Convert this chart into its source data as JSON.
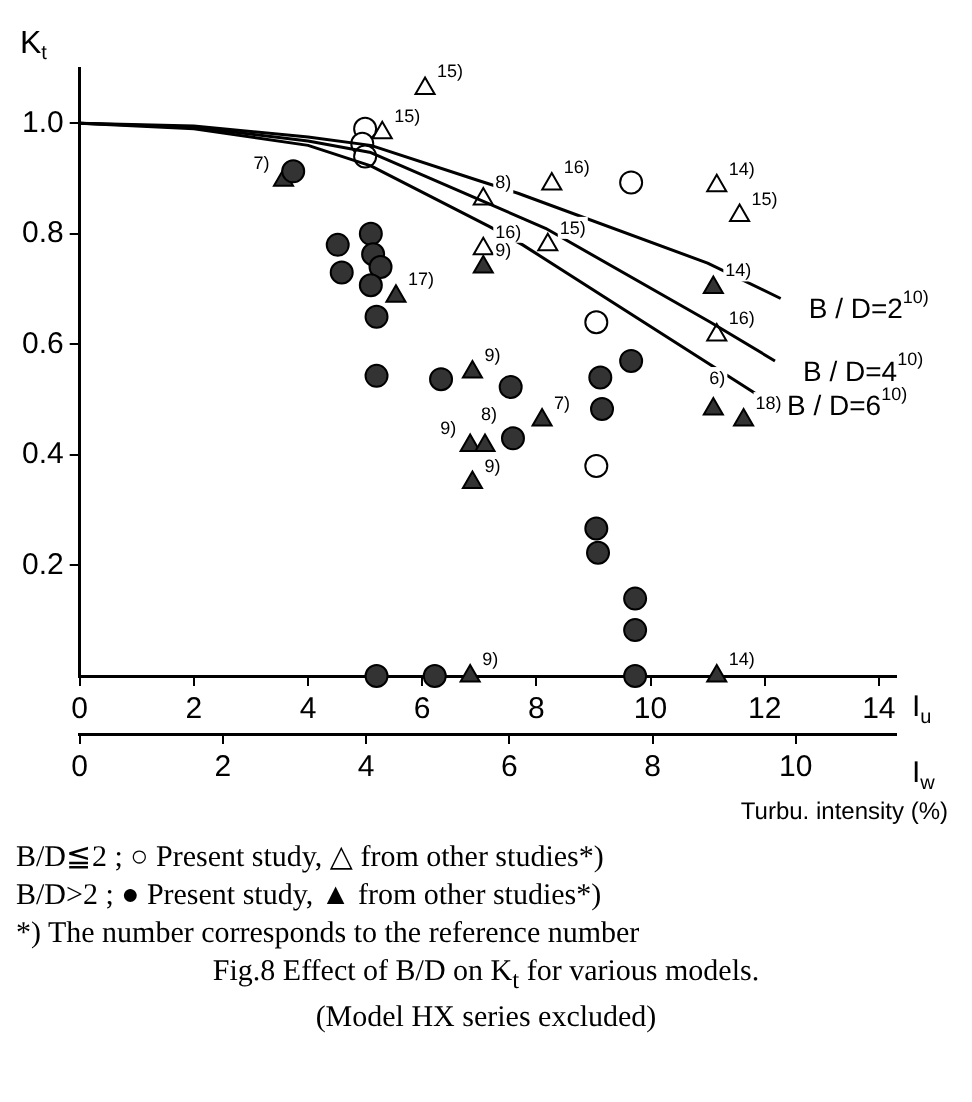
{
  "chart_data": {
    "type": "scatter",
    "title": "Fig.8 Effect of B/D on K$_{t}$ for various models.",
    "subtitle": "(Model HX series excluded)",
    "ylabel": "K$_{t}$",
    "xlabel": "I$_{u}$",
    "x2label": "I$_{w}$",
    "xlim": [
      0,
      14.3
    ],
    "xticks": [
      0,
      2,
      4,
      6,
      8,
      10,
      12,
      14
    ],
    "x2lim": [
      0,
      11.4
    ],
    "x2ticks": [
      0,
      2,
      4,
      6,
      8,
      10
    ],
    "ylim": [
      0,
      1.1
    ],
    "yticks": [
      {
        "value": 0.2,
        "label": "0.2"
      },
      {
        "value": 0.4,
        "label": "0.4"
      },
      {
        "value": 0.6,
        "label": "0.6"
      },
      {
        "value": 0.8,
        "label": "0.8"
      },
      {
        "value": 1,
        "label": "1.0"
      }
    ],
    "grid": false,
    "legend": false,
    "series": [
      {
        "name": "B / D=2$^{10)}$",
        "type": "line",
        "marker": "none",
        "color": "#000000",
        "x": [
          0,
          2,
          4,
          5.1,
          6.97,
          7.69,
          11,
          12.28
        ],
        "values": [
          1,
          0.995,
          0.975,
          0.96,
          0.897,
          0.873,
          0.747,
          0.683
        ]
      },
      {
        "name": "B / D=4$^{10)}$",
        "type": "line",
        "marker": "none",
        "color": "#000000",
        "x": [
          0,
          2,
          4,
          5.1,
          6.97,
          8.16,
          11.05,
          12.18
        ],
        "values": [
          1,
          0.993,
          0.968,
          0.947,
          0.863,
          0.81,
          0.64,
          0.57
        ]
      },
      {
        "name": "B / D=6$^{10)}$",
        "type": "line",
        "marker": "none",
        "color": "#000000",
        "x": [
          0,
          2,
          4,
          5.1,
          7.18,
          7.76,
          11.9
        ],
        "values": [
          1,
          0.99,
          0.96,
          0.923,
          0.813,
          0.78,
          0.507
        ]
      },
      {
        "type": "scatter",
        "marker": "circle",
        "color": "#ffffff",
        "x": [
          5.0,
          4.95,
          5.0,
          9.66,
          9.05,
          9.05
        ],
        "values": [
          0.99,
          0.963,
          0.94,
          0.893,
          0.64,
          0.38
        ]
      },
      {
        "type": "scatter",
        "marker": "triangle",
        "color": "#ffffff",
        "x": [
          6.05,
          5.3,
          7.07,
          7.07,
          8.27,
          11.16,
          11.56,
          8.2,
          11.16
        ],
        "values": [
          1.063,
          0.983,
          0.863,
          0.773,
          0.89,
          0.887,
          0.833,
          0.78,
          0.617
        ]
      },
      {
        "type": "scatter",
        "marker": "circle",
        "color": "#333333",
        "x": [
          3.74,
          4.52,
          4.59,
          5.1,
          5.14,
          5.27,
          5.1,
          5.2,
          5.2,
          6.33,
          7.55,
          7.59,
          9.12,
          9.66,
          9.15,
          9.05,
          9.08,
          9.73,
          9.73,
          9.73,
          5.2,
          6.22
        ],
        "values": [
          0.913,
          0.78,
          0.73,
          0.8,
          0.763,
          0.74,
          0.707,
          0.65,
          0.543,
          0.537,
          0.523,
          0.43,
          0.54,
          0.57,
          0.483,
          0.267,
          0.223,
          0.14,
          0.083,
          0,
          0,
          0
        ]
      },
      {
        "type": "scatter",
        "marker": "triangle",
        "color": "#333333",
        "x": [
          3.57,
          5.54,
          6.88,
          7.07,
          6.84,
          7.1,
          6.88,
          8.1,
          11.1,
          11.1,
          11.63,
          6.84,
          11.16
        ],
        "values": [
          0.897,
          0.687,
          0.55,
          0.74,
          0.417,
          0.417,
          0.35,
          0.463,
          0.703,
          0.483,
          0.463,
          0,
          0
        ]
      }
    ],
    "annotations": [
      "Turbu. intensity (%)",
      "B/D≦2 ; ○ Present study, △ from other studies*)",
      "B/D>2 ; ● Present study, ▲ from other studies*)",
      "*) The number corresponds to the reference number",
      {
        "text": "15)",
        "x": 6.05,
        "y": 1.063
      },
      {
        "text": "15)",
        "x": 5.3,
        "y": 0.983
      },
      {
        "text": "8)",
        "x": 7.07,
        "y": 0.863
      },
      {
        "text": "16)",
        "x": 7.07,
        "y": 0.773
      },
      {
        "text": "16)",
        "x": 8.27,
        "y": 0.89
      },
      {
        "text": "14)",
        "x": 11.16,
        "y": 0.887
      },
      {
        "text": "15)",
        "x": 11.56,
        "y": 0.833
      },
      {
        "text": "15)",
        "x": 8.2,
        "y": 0.78
      },
      {
        "text": "16)",
        "x": 11.16,
        "y": 0.617
      },
      {
        "text": "7)",
        "x": 3.57,
        "y": 0.897
      },
      {
        "text": "17)",
        "x": 5.54,
        "y": 0.687
      },
      {
        "text": "9)",
        "x": 6.88,
        "y": 0.55
      },
      {
        "text": "9)",
        "x": 7.07,
        "y": 0.74
      },
      {
        "text": "9)",
        "x": 6.84,
        "y": 0.417
      },
      {
        "text": "8)",
        "x": 7.1,
        "y": 0.417
      },
      {
        "text": "9)",
        "x": 6.88,
        "y": 0.35
      },
      {
        "text": "7)",
        "x": 8.1,
        "y": 0.463
      },
      {
        "text": "14)",
        "x": 11.1,
        "y": 0.703
      },
      {
        "text": "6)",
        "x": 11.1,
        "y": 0.483
      },
      {
        "text": "18)",
        "x": 11.63,
        "y": 0.463
      },
      {
        "text": "9)",
        "x": 6.84,
        "y": 0
      },
      {
        "text": "14)",
        "x": 11.16,
        "y": 0
      }
    ]
  }
}
